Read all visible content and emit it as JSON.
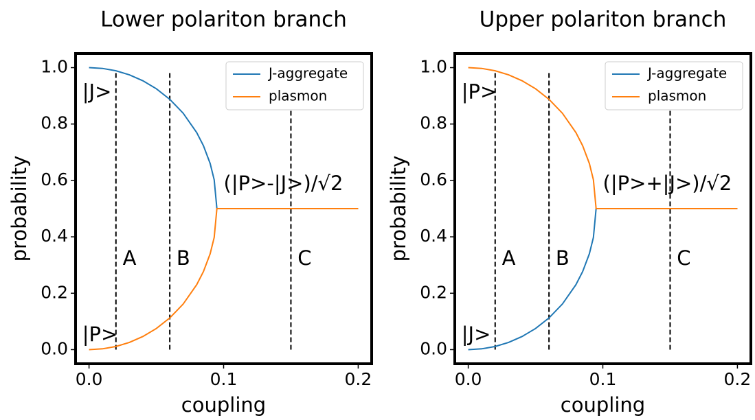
{
  "chart_data": [
    {
      "type": "line",
      "title": "Lower polariton branch",
      "x_label": "coupling",
      "y_label": "probability",
      "x": [
        0,
        0.01,
        0.02,
        0.03,
        0.04,
        0.05,
        0.06,
        0.07,
        0.08,
        0.085,
        0.09,
        0.093,
        0.095,
        0.1,
        0.15,
        0.2
      ],
      "series": [
        {
          "name": "J-aggregate",
          "color": "#1f77b4",
          "values": [
            1.0,
            0.9972,
            0.9888,
            0.9744,
            0.9535,
            0.9251,
            0.8877,
            0.838,
            0.7697,
            0.7233,
            0.6601,
            0.6021,
            0.5,
            0.5,
            0.5,
            0.5
          ]
        },
        {
          "name": "plasmon",
          "color": "#ff7f0e",
          "values": [
            0.0,
            0.0028,
            0.0112,
            0.0256,
            0.0465,
            0.0749,
            0.1123,
            0.162,
            0.2303,
            0.2767,
            0.3399,
            0.3979,
            0.5,
            0.5,
            0.5,
            0.5
          ]
        }
      ],
      "xlim": [
        -0.01,
        0.21
      ],
      "xticks": [
        {
          "value": 0,
          "label": "0.0"
        },
        0.1,
        0.2
      ],
      "ylim": [
        -0.05,
        1.05
      ],
      "yticks": [
        {
          "value": 0,
          "label": "0.0"
        },
        0.2,
        0.4,
        0.6,
        0.8,
        {
          "value": 1,
          "label": "1.0"
        }
      ],
      "legend": "upper right",
      "vlines": [
        {
          "x": 0.02,
          "y": [
            0,
            0.99
          ]
        },
        {
          "x": 0.06,
          "y": [
            0,
            0.99
          ]
        },
        {
          "x": 0.15,
          "y": [
            0,
            0.94
          ]
        }
      ],
      "annotations": [
        {
          "text": "|J>",
          "x": -0.005,
          "y": 0.91
        },
        {
          "text": "|P>",
          "x": -0.005,
          "y": 0.05
        },
        {
          "text": "(|P>-|J>)/√2",
          "x": 0.1,
          "y": 0.585
        },
        {
          "text": "A",
          "x": 0.025,
          "y": 0.32
        },
        {
          "text": "B",
          "x": 0.065,
          "y": 0.32
        },
        {
          "text": "C",
          "x": 0.155,
          "y": 0.32
        }
      ]
    },
    {
      "type": "line",
      "title": "Upper polariton branch",
      "x_label": "coupling",
      "y_label": "probability",
      "x": [
        0,
        0.01,
        0.02,
        0.03,
        0.04,
        0.05,
        0.06,
        0.07,
        0.08,
        0.085,
        0.09,
        0.093,
        0.095,
        0.1,
        0.15,
        0.2
      ],
      "series": [
        {
          "name": "J-aggregate",
          "color": "#1f77b4",
          "values": [
            0.0,
            0.0028,
            0.0112,
            0.0256,
            0.0465,
            0.0749,
            0.1123,
            0.162,
            0.2303,
            0.2767,
            0.3399,
            0.3979,
            0.5,
            0.5,
            0.5,
            0.5
          ]
        },
        {
          "name": "plasmon",
          "color": "#ff7f0e",
          "values": [
            1.0,
            0.9972,
            0.9888,
            0.9744,
            0.9535,
            0.9251,
            0.8877,
            0.838,
            0.7697,
            0.7233,
            0.6601,
            0.6021,
            0.5,
            0.5,
            0.5,
            0.5
          ]
        }
      ],
      "xlim": [
        -0.01,
        0.21
      ],
      "xticks": [
        {
          "value": 0,
          "label": "0.0"
        },
        0.1,
        0.2
      ],
      "ylim": [
        -0.05,
        1.05
      ],
      "yticks": [
        {
          "value": 0,
          "label": "0.0"
        },
        0.2,
        0.4,
        0.6,
        0.8,
        {
          "value": 1,
          "label": "1.0"
        }
      ],
      "legend": "upper right",
      "vlines": [
        {
          "x": 0.02,
          "y": [
            0,
            0.99
          ]
        },
        {
          "x": 0.06,
          "y": [
            0,
            0.99
          ]
        },
        {
          "x": 0.15,
          "y": [
            0,
            0.94
          ]
        }
      ],
      "annotations": [
        {
          "text": "|P>",
          "x": -0.005,
          "y": 0.91
        },
        {
          "text": "|J>",
          "x": -0.005,
          "y": 0.05
        },
        {
          "text": "(|P>+|J>)/√2",
          "x": 0.1,
          "y": 0.585
        },
        {
          "text": "A",
          "x": 0.025,
          "y": 0.32
        },
        {
          "text": "B",
          "x": 0.065,
          "y": 0.32
        },
        {
          "text": "C",
          "x": 0.155,
          "y": 0.32
        }
      ]
    }
  ]
}
